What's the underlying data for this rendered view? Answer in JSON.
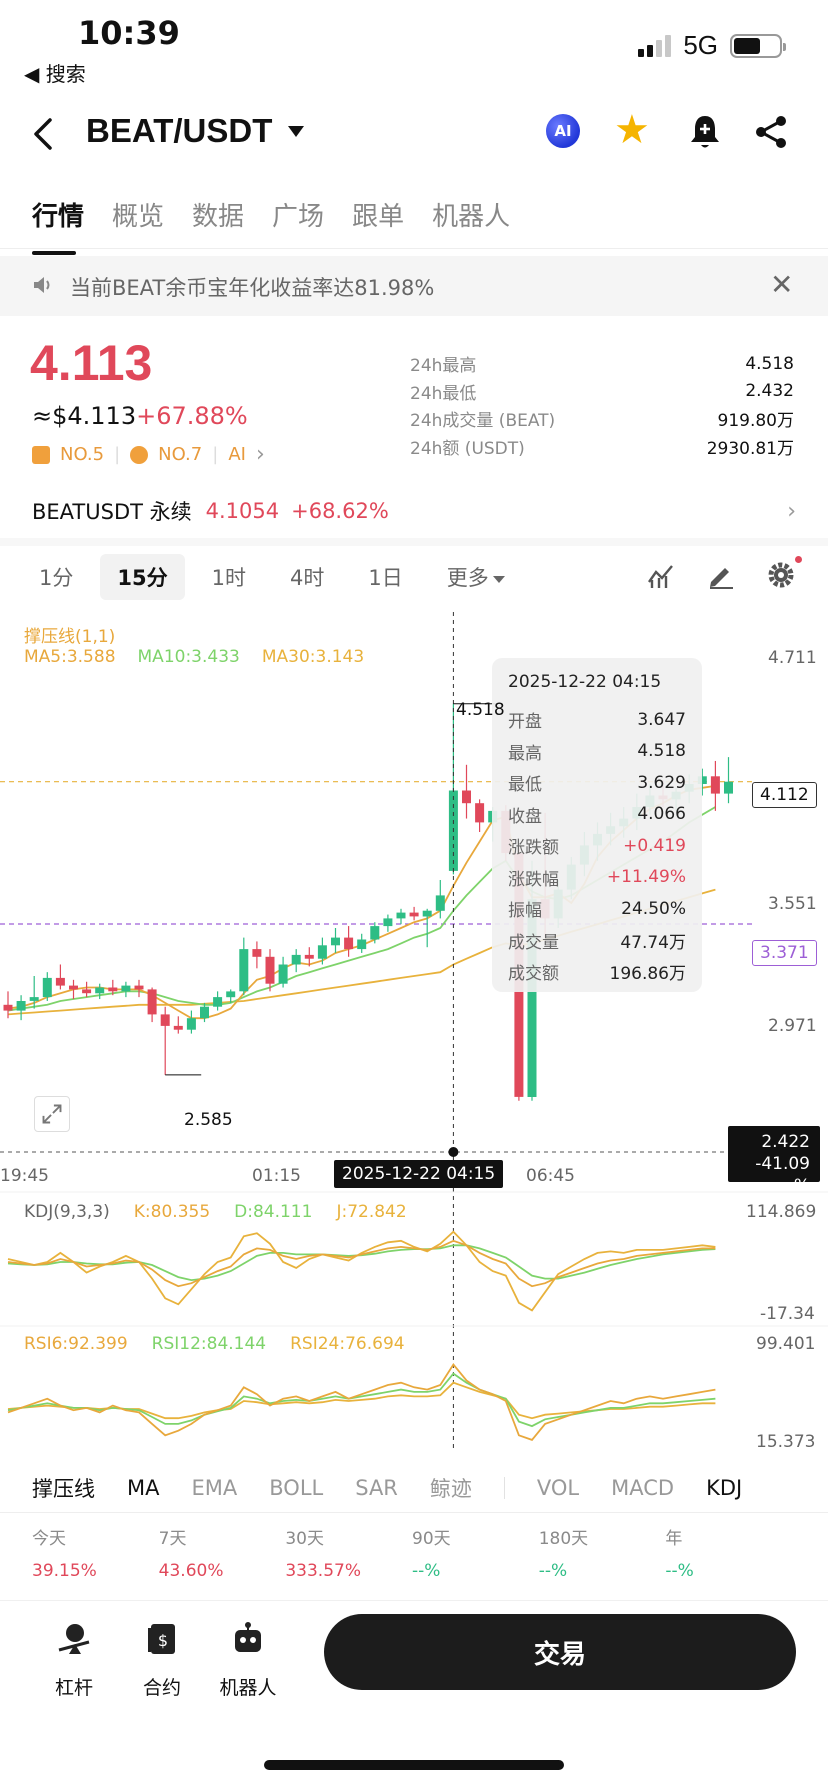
{
  "status_bar": {
    "time": "10:39",
    "back_app": "◀ 搜索",
    "network": "5G"
  },
  "header": {
    "pair": "BEAT/USDT",
    "ai_label": "AI"
  },
  "main_tabs": [
    "行情",
    "概览",
    "数据",
    "广场",
    "跟单",
    "机器人"
  ],
  "announcement": {
    "text": "当前BEAT余币宝年化收益率达81.98%"
  },
  "price": {
    "last": "4.113",
    "usd_prefix": "≈$4.113",
    "change_pct": "+67.88%",
    "rank1": "NO.5",
    "rank2": "NO.7",
    "ai": "AI"
  },
  "stats": [
    {
      "label": "24h最高",
      "value": "4.518"
    },
    {
      "label": "24h最低",
      "value": "2.432"
    },
    {
      "label": "24h成交量 (BEAT)",
      "value": "919.80万"
    },
    {
      "label": "24h额 (USDT)",
      "value": "2930.81万"
    }
  ],
  "perpetual": {
    "name": "BEATUSDT 永续",
    "price": "4.1054",
    "change": "+68.62%"
  },
  "intervals": [
    "1分",
    "15分",
    "1时",
    "4时",
    "1日"
  ],
  "interval_more": "更多",
  "chart_labels": {
    "support_line": "撑压线(1,1)",
    "ma5": "MA5:3.588",
    "ma10": "MA10:3.433",
    "ma30": "MA30:3.143",
    "y_ticks": [
      "4.711",
      "3.551",
      "2.971"
    ],
    "high_marker": "4.518",
    "low_marker": "2.585",
    "last_tag": "4.112",
    "cross_tag": "3.371",
    "low_tag_price": "2.422",
    "low_tag_pct": "-41.09 %",
    "x_ticks": [
      "19:45",
      "01:15",
      "06:45"
    ],
    "cursor_time": "2025-12-22 04:15",
    "kdj_legend": "KDJ(9,3,3)",
    "k": "K:80.355",
    "d": "D:84.111",
    "j": "J:72.842",
    "kdj_max": "114.869",
    "kdj_min": "-17.34",
    "rsi6": "RSI6:92.399",
    "rsi12": "RSI12:84.144",
    "rsi24": "RSI24:76.694",
    "rsi_max": "99.401",
    "rsi_min": "15.373"
  },
  "tooltip": {
    "time": "2025-12-22 04:15",
    "rows": [
      {
        "k": "开盘",
        "v": "3.647"
      },
      {
        "k": "最高",
        "v": "4.518"
      },
      {
        "k": "最低",
        "v": "3.629"
      },
      {
        "k": "收盘",
        "v": "4.066"
      },
      {
        "k": "涨跌额",
        "v": "+0.419"
      },
      {
        "k": "涨跌幅",
        "v": "+11.49%"
      },
      {
        "k": "振幅",
        "v": "24.50%"
      },
      {
        "k": "成交量",
        "v": "47.74万"
      },
      {
        "k": "成交额",
        "v": "196.86万"
      }
    ]
  },
  "indicator_tabs": [
    "撑压线",
    "MA",
    "EMA",
    "BOLL",
    "SAR",
    "鲸迹",
    "VOL",
    "MACD",
    "KDJ"
  ],
  "returns": [
    {
      "period": "今天",
      "value": "39.15%"
    },
    {
      "period": "7天",
      "value": "43.60%"
    },
    {
      "period": "30天",
      "value": "333.57%"
    },
    {
      "period": "90天",
      "value": "--%"
    },
    {
      "period": "180天",
      "value": "--%"
    },
    {
      "period": "年",
      "value": "--%"
    }
  ],
  "bottom_bar": {
    "leverage": "杠杆",
    "contract": "合约",
    "bot": "机器人",
    "trade": "交易"
  },
  "colors": {
    "up": "#e0485a",
    "down": "#2ebd85",
    "ma5": "#e8a83c",
    "ma10": "#7ed36a",
    "ma30": "#e8b23c"
  },
  "chart_data": {
    "type": "candlestick",
    "interval": "15分",
    "ylim": [
      2.35,
      4.85
    ],
    "candles": [
      {
        "o": 2.95,
        "h": 3.02,
        "l": 2.88,
        "c": 2.92
      },
      {
        "o": 2.92,
        "h": 3.0,
        "l": 2.87,
        "c": 2.97
      },
      {
        "o": 2.97,
        "h": 3.1,
        "l": 2.93,
        "c": 2.99
      },
      {
        "o": 2.99,
        "h": 3.12,
        "l": 2.97,
        "c": 3.09
      },
      {
        "o": 3.09,
        "h": 3.16,
        "l": 3.03,
        "c": 3.05
      },
      {
        "o": 3.05,
        "h": 3.08,
        "l": 2.98,
        "c": 3.03
      },
      {
        "o": 3.03,
        "h": 3.07,
        "l": 2.99,
        "c": 3.01
      },
      {
        "o": 3.01,
        "h": 3.06,
        "l": 2.98,
        "c": 3.04
      },
      {
        "o": 3.04,
        "h": 3.08,
        "l": 3.0,
        "c": 3.02
      },
      {
        "o": 3.02,
        "h": 3.07,
        "l": 2.99,
        "c": 3.05
      },
      {
        "o": 3.05,
        "h": 3.08,
        "l": 2.99,
        "c": 3.03
      },
      {
        "o": 3.03,
        "h": 3.04,
        "l": 2.86,
        "c": 2.9
      },
      {
        "o": 2.9,
        "h": 2.94,
        "l": 2.585,
        "c": 2.84
      },
      {
        "o": 2.84,
        "h": 2.89,
        "l": 2.8,
        "c": 2.82
      },
      {
        "o": 2.82,
        "h": 2.92,
        "l": 2.8,
        "c": 2.88
      },
      {
        "o": 2.88,
        "h": 2.96,
        "l": 2.86,
        "c": 2.94
      },
      {
        "o": 2.94,
        "h": 3.02,
        "l": 2.92,
        "c": 2.99
      },
      {
        "o": 2.99,
        "h": 3.03,
        "l": 2.96,
        "c": 3.02
      },
      {
        "o": 3.02,
        "h": 3.3,
        "l": 3.0,
        "c": 3.24
      },
      {
        "o": 3.24,
        "h": 3.28,
        "l": 3.14,
        "c": 3.2
      },
      {
        "o": 3.2,
        "h": 3.24,
        "l": 3.02,
        "c": 3.06
      },
      {
        "o": 3.06,
        "h": 3.2,
        "l": 3.04,
        "c": 3.16
      },
      {
        "o": 3.16,
        "h": 3.24,
        "l": 3.12,
        "c": 3.21
      },
      {
        "o": 3.21,
        "h": 3.25,
        "l": 3.15,
        "c": 3.19
      },
      {
        "o": 3.19,
        "h": 3.3,
        "l": 3.16,
        "c": 3.26
      },
      {
        "o": 3.26,
        "h": 3.35,
        "l": 3.22,
        "c": 3.3
      },
      {
        "o": 3.3,
        "h": 3.36,
        "l": 3.2,
        "c": 3.24
      },
      {
        "o": 3.24,
        "h": 3.32,
        "l": 3.22,
        "c": 3.29
      },
      {
        "o": 3.29,
        "h": 3.38,
        "l": 3.27,
        "c": 3.36
      },
      {
        "o": 3.36,
        "h": 3.42,
        "l": 3.33,
        "c": 3.4
      },
      {
        "o": 3.4,
        "h": 3.45,
        "l": 3.37,
        "c": 3.43
      },
      {
        "o": 3.43,
        "h": 3.46,
        "l": 3.39,
        "c": 3.41
      },
      {
        "o": 3.41,
        "h": 3.45,
        "l": 3.25,
        "c": 3.44
      },
      {
        "o": 3.44,
        "h": 3.6,
        "l": 3.4,
        "c": 3.52
      },
      {
        "o": 3.647,
        "h": 4.518,
        "l": 3.629,
        "c": 4.066
      },
      {
        "o": 4.066,
        "h": 4.2,
        "l": 3.92,
        "c": 4.0
      },
      {
        "o": 4.0,
        "h": 4.02,
        "l": 3.85,
        "c": 3.9
      },
      {
        "o": 3.9,
        "h": 3.98,
        "l": 3.8,
        "c": 3.96
      },
      {
        "o": 3.96,
        "h": 3.99,
        "l": 3.7,
        "c": 3.74
      },
      {
        "o": 3.74,
        "h": 3.78,
        "l": 2.45,
        "c": 2.47
      },
      {
        "o": 2.47,
        "h": 3.7,
        "l": 2.45,
        "c": 3.5
      },
      {
        "o": 3.5,
        "h": 3.95,
        "l": 3.3,
        "c": 3.4
      },
      {
        "o": 3.4,
        "h": 3.6,
        "l": 3.35,
        "c": 3.55
      },
      {
        "o": 3.55,
        "h": 3.72,
        "l": 3.5,
        "c": 3.68
      },
      {
        "o": 3.68,
        "h": 3.85,
        "l": 3.62,
        "c": 3.78
      },
      {
        "o": 3.78,
        "h": 3.9,
        "l": 3.7,
        "c": 3.84
      },
      {
        "o": 3.84,
        "h": 3.95,
        "l": 3.78,
        "c": 3.88
      },
      {
        "o": 3.88,
        "h": 3.98,
        "l": 3.82,
        "c": 3.92
      },
      {
        "o": 3.92,
        "h": 4.05,
        "l": 3.86,
        "c": 3.98
      },
      {
        "o": 3.98,
        "h": 4.1,
        "l": 3.94,
        "c": 4.04
      },
      {
        "o": 4.04,
        "h": 4.12,
        "l": 3.98,
        "c": 4.02
      },
      {
        "o": 4.02,
        "h": 4.08,
        "l": 3.96,
        "c": 4.06
      },
      {
        "o": 4.06,
        "h": 4.15,
        "l": 4.0,
        "c": 4.1
      },
      {
        "o": 4.1,
        "h": 4.18,
        "l": 4.04,
        "c": 4.14
      },
      {
        "o": 4.14,
        "h": 4.22,
        "l": 3.96,
        "c": 4.05
      },
      {
        "o": 4.05,
        "h": 4.24,
        "l": 4.0,
        "c": 4.112
      }
    ],
    "ma5": [
      2.93,
      2.94,
      2.96,
      2.99,
      3.01,
      3.03,
      3.04,
      3.04,
      3.03,
      3.03,
      3.03,
      3.0,
      2.96,
      2.92,
      2.88,
      2.88,
      2.9,
      2.93,
      3.01,
      3.08,
      3.1,
      3.14,
      3.17,
      3.16,
      3.18,
      3.22,
      3.24,
      3.26,
      3.29,
      3.32,
      3.35,
      3.38,
      3.4,
      3.44,
      3.57,
      3.69,
      3.8,
      3.91,
      3.93,
      3.63,
      3.51,
      3.51,
      3.53,
      3.48,
      3.58,
      3.72,
      3.8,
      3.86,
      3.92,
      3.97,
      4.0,
      4.04,
      4.07,
      4.08,
      4.09
    ],
    "ma10": [
      2.92,
      2.93,
      2.94,
      2.95,
      2.97,
      2.98,
      2.99,
      3.0,
      3.01,
      3.02,
      3.02,
      3.01,
      2.99,
      2.97,
      2.96,
      2.95,
      2.95,
      2.96,
      2.99,
      3.02,
      3.04,
      3.07,
      3.1,
      3.12,
      3.14,
      3.16,
      3.18,
      3.2,
      3.22,
      3.24,
      3.27,
      3.3,
      3.32,
      3.35,
      3.44,
      3.52,
      3.59,
      3.66,
      3.7,
      3.6,
      3.54,
      3.51,
      3.5,
      3.52,
      3.56,
      3.6,
      3.64,
      3.68,
      3.72,
      3.76,
      3.8,
      3.85,
      3.9,
      3.94,
      3.98
    ],
    "ma30": [
      2.9,
      2.905,
      2.91,
      2.915,
      2.92,
      2.925,
      2.93,
      2.935,
      2.94,
      2.945,
      2.95,
      2.95,
      2.95,
      2.95,
      2.95,
      2.955,
      2.96,
      2.965,
      2.97,
      2.98,
      2.99,
      3.0,
      3.01,
      3.02,
      3.03,
      3.04,
      3.05,
      3.06,
      3.07,
      3.08,
      3.09,
      3.1,
      3.11,
      3.12,
      3.16,
      3.19,
      3.22,
      3.25,
      3.27,
      3.26,
      3.27,
      3.29,
      3.31,
      3.33,
      3.35,
      3.37,
      3.39,
      3.41,
      3.43,
      3.45,
      3.47,
      3.49,
      3.51,
      3.53,
      3.55
    ],
    "kdj": {
      "ylim": [
        -17.34,
        114.869
      ],
      "K": [
        62,
        60,
        58,
        60,
        66,
        62,
        56,
        58,
        60,
        64,
        62,
        52,
        38,
        30,
        34,
        42,
        50,
        56,
        72,
        80,
        78,
        70,
        66,
        70,
        72,
        70,
        68,
        72,
        76,
        80,
        82,
        80,
        78,
        82,
        90,
        84,
        74,
        66,
        60,
        40,
        30,
        34,
        42,
        48,
        54,
        60,
        64,
        66,
        70,
        72,
        74,
        76,
        78,
        80,
        80
      ],
      "D": [
        60,
        59,
        58,
        59,
        62,
        62,
        60,
        59,
        59,
        61,
        62,
        58,
        50,
        42,
        38,
        40,
        44,
        50,
        60,
        70,
        74,
        74,
        72,
        72,
        72,
        71,
        70,
        71,
        73,
        76,
        78,
        79,
        79,
        80,
        84,
        84,
        80,
        74,
        68,
        56,
        44,
        40,
        40,
        44,
        48,
        53,
        58,
        62,
        66,
        69,
        72,
        74,
        76,
        78,
        79
      ],
      "J": [
        66,
        62,
        58,
        62,
        74,
        62,
        48,
        56,
        62,
        70,
        62,
        40,
        14,
        6,
        26,
        46,
        62,
        68,
        96,
        100,
        86,
        62,
        54,
        66,
        72,
        68,
        64,
        74,
        82,
        88,
        90,
        82,
        76,
        86,
        102,
        84,
        62,
        50,
        44,
        8,
        -2,
        22,
        46,
        56,
        66,
        74,
        76,
        74,
        78,
        78,
        78,
        80,
        82,
        84,
        82
      ]
    },
    "rsi": {
      "ylim": [
        15.373,
        99.401
      ],
      "RSI6": [
        50,
        54,
        58,
        62,
        56,
        52,
        54,
        50,
        56,
        52,
        50,
        40,
        30,
        34,
        40,
        48,
        52,
        56,
        72,
        66,
        56,
        62,
        64,
        60,
        64,
        68,
        62,
        66,
        70,
        74,
        76,
        72,
        70,
        74,
        92,
        78,
        70,
        66,
        60,
        30,
        26,
        40,
        44,
        48,
        52,
        56,
        60,
        58,
        62,
        64,
        62,
        64,
        66,
        68,
        70
      ],
      "RSI12": [
        52,
        54,
        56,
        58,
        56,
        54,
        54,
        52,
        54,
        53,
        52,
        46,
        40,
        40,
        43,
        48,
        51,
        54,
        64,
        62,
        58,
        60,
        61,
        60,
        62,
        64,
        62,
        64,
        66,
        68,
        70,
        68,
        68,
        70,
        84,
        76,
        70,
        66,
        62,
        42,
        38,
        44,
        46,
        48,
        50,
        52,
        54,
        54,
        56,
        58,
        58,
        59,
        60,
        61,
        62
      ],
      "RSI24": [
        53,
        54,
        55,
        56,
        55,
        54,
        54,
        53,
        54,
        53,
        53,
        49,
        45,
        45,
        47,
        50,
        52,
        53,
        60,
        59,
        57,
        58,
        59,
        58,
        59,
        61,
        60,
        61,
        62,
        64,
        65,
        64,
        64,
        65,
        76,
        72,
        68,
        65,
        62,
        48,
        45,
        48,
        49,
        50,
        51,
        52,
        53,
        53,
        54,
        55,
        55,
        56,
        57,
        58,
        58
      ]
    }
  }
}
